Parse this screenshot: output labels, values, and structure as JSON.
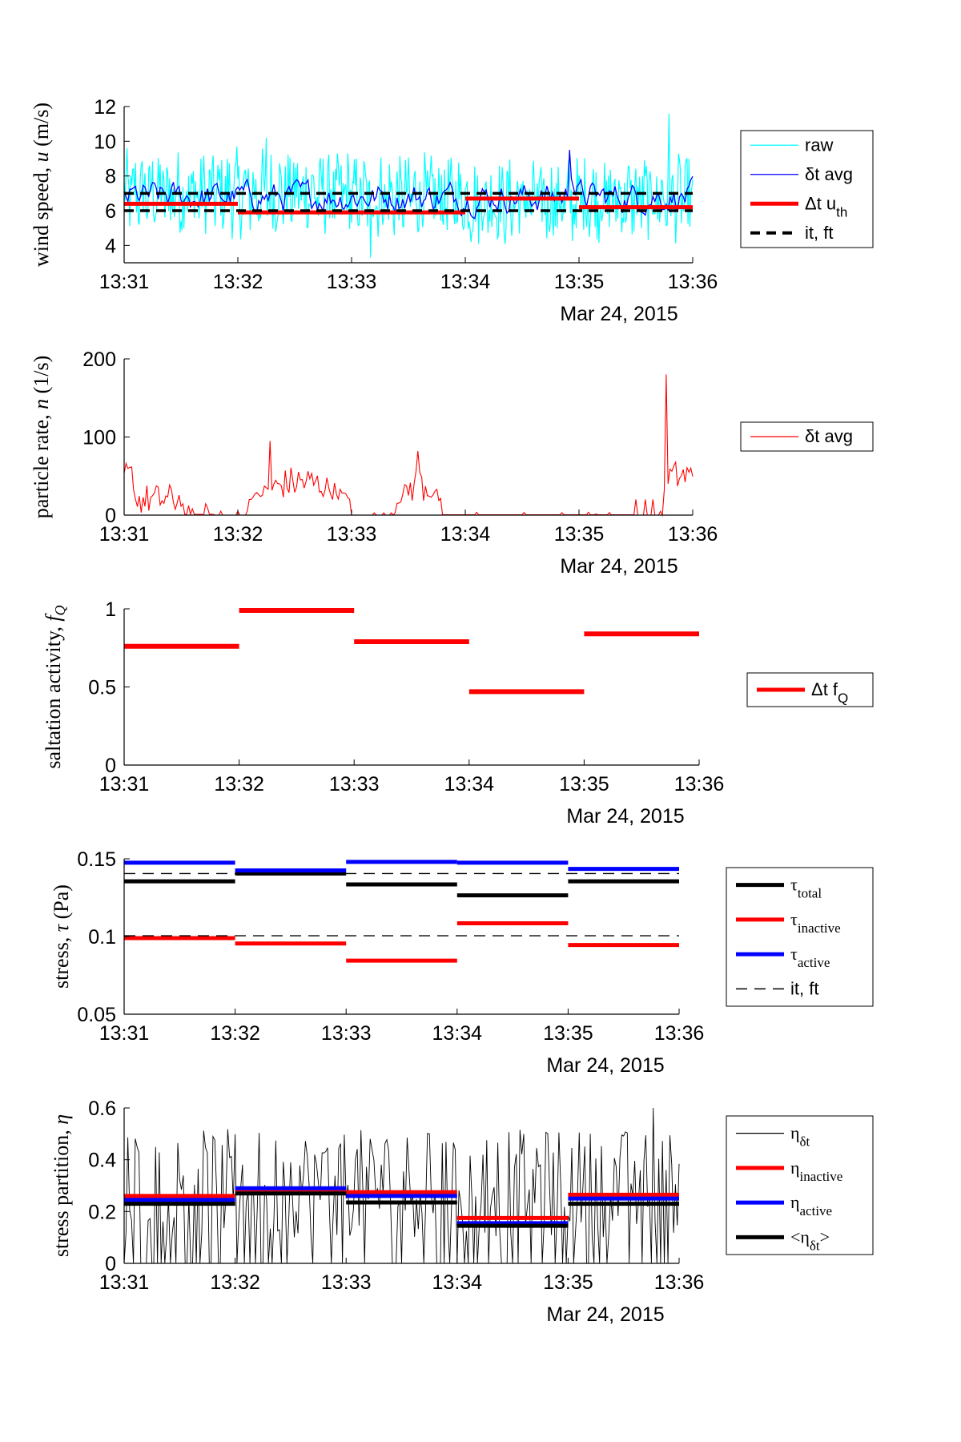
{
  "chart_data": [
    {
      "type": "line",
      "ylabel_text": "wind speed, ",
      "ylabel_var": "u",
      "ylabel_unit": " (m/s)",
      "x_ticks": [
        "13:31",
        "13:32",
        "13:33",
        "13:34",
        "13:35",
        "13:36"
      ],
      "x_date": "Mar 24, 2015",
      "xlim": [
        "13:31",
        "13:36"
      ],
      "ylim": [
        3,
        12
      ],
      "y_ticks": [
        "4",
        "6",
        "8",
        "10",
        "12"
      ],
      "legend": [
        "raw",
        "δt avg",
        "Δt u",
        "it, ft"
      ],
      "legend_sub": [
        "",
        "",
        "th",
        ""
      ],
      "series": [
        {
          "name": "raw",
          "color": "#00FFFF",
          "style": "thin"
        },
        {
          "name": "δt avg",
          "color": "#0000FF",
          "style": "thin"
        },
        {
          "name": "Δt u_th",
          "color": "#FF0000",
          "style": "thick-segments",
          "segments": [
            [
              0,
              1,
              6.4
            ],
            [
              1,
              2,
              5.9
            ],
            [
              2,
              3,
              5.9
            ],
            [
              3,
              4,
              6.7
            ],
            [
              4,
              5,
              6.2
            ]
          ]
        },
        {
          "name": "it, ft",
          "color": "#000000",
          "style": "dashed",
          "levels": [
            7.0,
            6.0
          ]
        }
      ]
    },
    {
      "type": "line",
      "ylabel_text": "particle rate, ",
      "ylabel_var": "n",
      "ylabel_unit": " (1/s)",
      "x_ticks": [
        "13:31",
        "13:32",
        "13:33",
        "13:34",
        "13:35",
        "13:36"
      ],
      "x_date": "Mar 24, 2015",
      "ylim": [
        0,
        200
      ],
      "y_ticks": [
        "0",
        "100",
        "200"
      ],
      "legend": [
        "δt avg"
      ],
      "series": [
        {
          "name": "δt avg",
          "color": "#FF0000"
        }
      ]
    },
    {
      "type": "line",
      "ylabel_text": "saltation activity, ",
      "ylabel_var": "f",
      "ylabel_varsub": "Q",
      "x_ticks": [
        "13:31",
        "13:32",
        "13:33",
        "13:34",
        "13:35",
        "13:36"
      ],
      "x_date": "Mar 24, 2015",
      "ylim": [
        0,
        1
      ],
      "y_ticks": [
        "0",
        "0.5",
        "1"
      ],
      "legend": [
        "Δt f"
      ],
      "legend_sub": [
        "Q"
      ],
      "series": [
        {
          "name": "Δt f_Q",
          "color": "#FF0000",
          "segments": [
            [
              0,
              1,
              0.76
            ],
            [
              1,
              2,
              0.99
            ],
            [
              2,
              3,
              0.79
            ],
            [
              3,
              4,
              0.47
            ],
            [
              4,
              5,
              0.84
            ]
          ]
        }
      ]
    },
    {
      "type": "line",
      "ylabel_text": "stress, ",
      "ylabel_var": "τ",
      "ylabel_unit": " (Pa)",
      "x_ticks": [
        "13:31",
        "13:32",
        "13:33",
        "13:34",
        "13:35",
        "13:36"
      ],
      "x_date": "Mar 24, 2015",
      "ylim": [
        0.05,
        0.15
      ],
      "y_ticks": [
        "0.05",
        "0.1",
        "0.15"
      ],
      "legend": [
        "τ",
        "τ",
        "τ",
        "it, ft"
      ],
      "legend_sub": [
        "total",
        "inactive",
        "active",
        ""
      ],
      "series": [
        {
          "name": "τ_total",
          "color": "#000000",
          "segments": [
            [
              0,
              1,
              0.1355
            ],
            [
              1,
              2,
              0.1405
            ],
            [
              2,
              3,
              0.1335
            ],
            [
              3,
              4,
              0.1265
            ],
            [
              4,
              5,
              0.1355
            ]
          ]
        },
        {
          "name": "τ_inactive",
          "color": "#FF0000",
          "segments": [
            [
              0,
              1,
              0.099
            ],
            [
              1,
              2,
              0.0955
            ],
            [
              2,
              3,
              0.0845
            ],
            [
              3,
              4,
              0.1085
            ],
            [
              4,
              5,
              0.0945
            ]
          ]
        },
        {
          "name": "τ_active",
          "color": "#0000FF",
          "segments": [
            [
              0,
              1,
              0.1475
            ],
            [
              1,
              2,
              0.1425
            ],
            [
              2,
              3,
              0.148
            ],
            [
              3,
              4,
              0.1475
            ],
            [
              4,
              5,
              0.1435
            ]
          ]
        },
        {
          "name": "it, ft",
          "color": "#000000",
          "style": "dashed",
          "levels": [
            0.1405,
            0.1005
          ]
        }
      ]
    },
    {
      "type": "line",
      "ylabel_text": "stress partition, ",
      "ylabel_var": "η",
      "x_ticks": [
        "13:31",
        "13:32",
        "13:33",
        "13:34",
        "13:35",
        "13:36"
      ],
      "x_date": "Mar 24, 2015",
      "ylim": [
        0,
        0.6
      ],
      "y_ticks": [
        "0",
        "0.2",
        "0.4",
        "0.6"
      ],
      "legend": [
        "η",
        "η",
        "η",
        "<η"
      ],
      "legend_sub": [
        "δt",
        "inactive",
        "active",
        "δt"
      ],
      "legend_suffix": [
        "",
        "",
        "",
        ">"
      ],
      "series": [
        {
          "name": "η_δt",
          "color": "#000000",
          "style": "thin"
        },
        {
          "name": "η_inactive",
          "color": "#FF0000",
          "segments": [
            [
              0,
              1,
              0.26
            ],
            [
              1,
              2,
              0.285
            ],
            [
              2,
              3,
              0.275
            ],
            [
              3,
              4,
              0.175
            ],
            [
              4,
              5,
              0.265
            ]
          ]
        },
        {
          "name": "η_active",
          "color": "#0000FF",
          "segments": [
            [
              0,
              1,
              0.245
            ],
            [
              1,
              2,
              0.29
            ],
            [
              2,
              3,
              0.26
            ],
            [
              3,
              4,
              0.155
            ],
            [
              4,
              5,
              0.25
            ]
          ]
        },
        {
          "name": "<η_δt>",
          "color": "#000000",
          "segments": [
            [
              0,
              1,
              0.23
            ],
            [
              1,
              2,
              0.27
            ],
            [
              2,
              3,
              0.235
            ],
            [
              3,
              4,
              0.145
            ],
            [
              4,
              5,
              0.23
            ]
          ]
        }
      ]
    }
  ]
}
